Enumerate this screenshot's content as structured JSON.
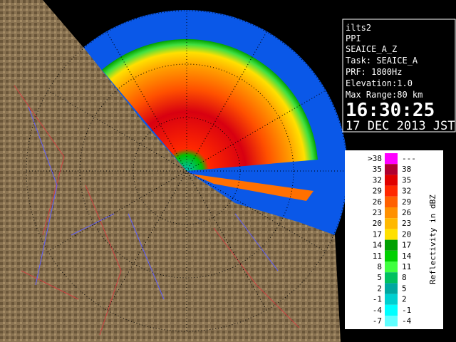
{
  "panel": {
    "site": "ilts2",
    "product": "PPI",
    "field": "SEAICE_A_Z",
    "task": "Task: SEAICE_A",
    "prf": "PRF: 1800Hz",
    "elevation": "Elevation:1.0",
    "max_range": "Max Range:80 km",
    "time": "16:30:25",
    "date": "17 DEC 2013 JST"
  },
  "legend": {
    "title": "Reflectivity in dBZ",
    "rows": [
      {
        "from": ">38",
        "to": "---",
        "color": "#ff00ff"
      },
      {
        "from": "35",
        "to": "38",
        "color": "#b00030"
      },
      {
        "from": "32",
        "to": "35",
        "color": "#e00000"
      },
      {
        "from": "29",
        "to": "32",
        "color": "#ff2800"
      },
      {
        "from": "26",
        "to": "29",
        "color": "#ff6000"
      },
      {
        "from": "23",
        "to": "26",
        "color": "#ff9000"
      },
      {
        "from": "20",
        "to": "23",
        "color": "#ffb800"
      },
      {
        "from": "17",
        "to": "20",
        "color": "#ffe000"
      },
      {
        "from": "14",
        "to": "17",
        "color": "#00a000"
      },
      {
        "from": "11",
        "to": "14",
        "color": "#00d000"
      },
      {
        "from": "8",
        "to": "11",
        "color": "#40ff40"
      },
      {
        "from": "5",
        "to": "8",
        "color": "#00c060"
      },
      {
        "from": "2",
        "to": "5",
        "color": "#00a8a0"
      },
      {
        "from": "-1",
        "to": "2",
        "color": "#00d0d0"
      },
      {
        "from": "-4",
        "to": "-1",
        "color": "#00ffff"
      },
      {
        "from": "-7",
        "to": "-4",
        "color": "#60ffff"
      }
    ]
  }
}
